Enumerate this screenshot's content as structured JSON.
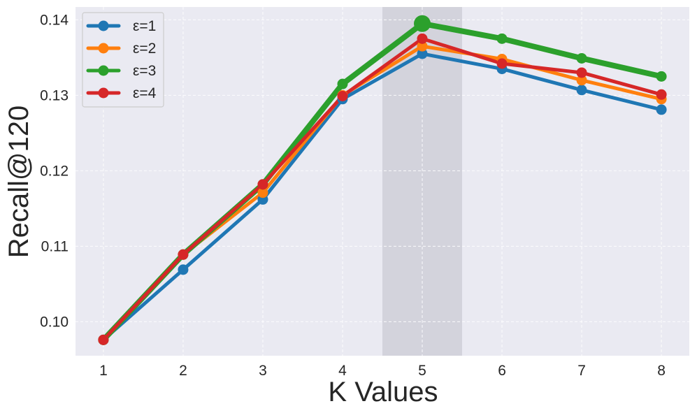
{
  "chart_data": {
    "type": "line",
    "title": "",
    "xlabel": "K Values",
    "ylabel": "Recall@120",
    "x": [
      1,
      2,
      3,
      4,
      5,
      6,
      7,
      8
    ],
    "xlim": [
      0.65,
      8.35
    ],
    "ylim": [
      0.0955,
      0.1417
    ],
    "yticks": [
      0.1,
      0.11,
      0.12,
      0.13,
      0.14
    ],
    "ytick_labels": [
      "0.10",
      "0.11",
      "0.12",
      "0.13",
      "0.14"
    ],
    "highlight_span": [
      4.5,
      5.5
    ],
    "highlight_point": {
      "series": "ε=3",
      "x": 5,
      "y": 0.1395
    },
    "grid": true,
    "legend_position": "top-left",
    "series": [
      {
        "name": "ε=1",
        "color": "#1f77b4",
        "values": [
          0.0976,
          0.1069,
          0.1162,
          0.1295,
          0.1355,
          0.1335,
          0.1307,
          0.1281
        ]
      },
      {
        "name": "ε=2",
        "color": "#ff7f0e",
        "values": [
          0.0976,
          0.1089,
          0.1171,
          0.13,
          0.1365,
          0.1348,
          0.132,
          0.1295
        ]
      },
      {
        "name": "ε=3",
        "color": "#2ca02c",
        "values": [
          0.0976,
          0.1089,
          0.1182,
          0.1315,
          0.1395,
          0.1375,
          0.1349,
          0.1325
        ]
      },
      {
        "name": "ε=4",
        "color": "#d62728",
        "values": [
          0.0976,
          0.1089,
          0.1182,
          0.1299,
          0.1375,
          0.1342,
          0.133,
          0.1301
        ]
      }
    ]
  }
}
